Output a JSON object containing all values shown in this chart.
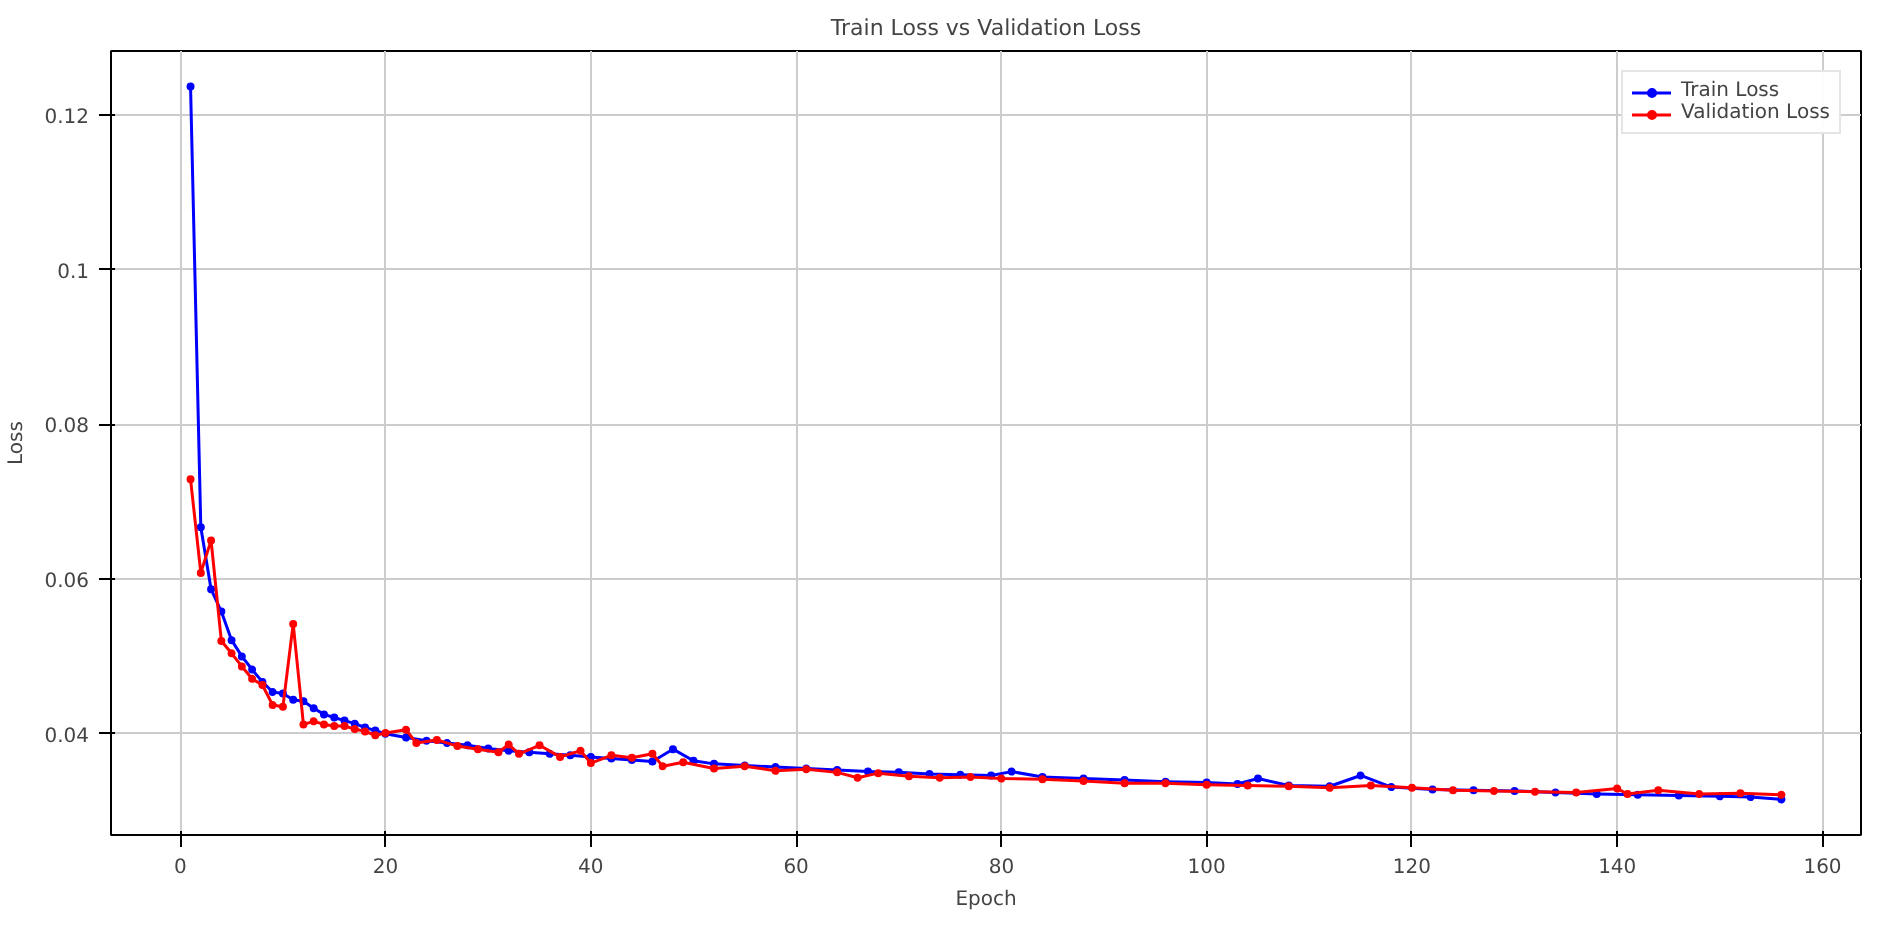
{
  "chart_data": {
    "type": "line",
    "title": "Train Loss vs Validation Loss",
    "xlabel": "Epoch",
    "ylabel": "Loss",
    "xlim": [
      -6.75,
      163.75
    ],
    "ylim": [
      0.0269,
      0.1283
    ],
    "xticks": [
      0,
      20,
      40,
      60,
      80,
      100,
      120,
      140,
      160
    ],
    "yticks": [
      0.04,
      0.06,
      0.08,
      0.1,
      0.12
    ],
    "grid": true,
    "legend": "top right",
    "marker": "circle",
    "line_style": "solid",
    "series": [
      {
        "name": "Train Loss",
        "color": "#0000ff",
        "x": [
          1,
          2,
          3,
          4,
          5,
          6,
          7,
          8,
          9,
          10,
          11,
          12,
          13,
          14,
          15,
          16,
          17,
          18,
          19,
          20,
          22,
          24,
          26,
          28,
          30,
          32,
          34,
          36,
          38,
          40,
          42,
          44,
          46,
          48,
          50,
          52,
          55,
          58,
          61,
          64,
          67,
          70,
          73,
          76,
          79,
          81,
          84,
          88,
          92,
          96,
          100,
          103,
          105,
          108,
          112,
          115,
          118,
          122,
          126,
          130,
          134,
          138,
          142,
          146,
          150,
          153,
          156
        ],
        "values": [
          0.1237,
          0.0667,
          0.0587,
          0.0558,
          0.0521,
          0.05,
          0.0483,
          0.0467,
          0.0454,
          0.0452,
          0.0444,
          0.0442,
          0.0433,
          0.0425,
          0.0421,
          0.0417,
          0.0413,
          0.0408,
          0.0404,
          0.04,
          0.0395,
          0.0391,
          0.0388,
          0.0385,
          0.0381,
          0.0378,
          0.0376,
          0.0374,
          0.0372,
          0.037,
          0.0368,
          0.0366,
          0.0364,
          0.038,
          0.0365,
          0.0361,
          0.0359,
          0.0357,
          0.0355,
          0.0353,
          0.0351,
          0.035,
          0.0348,
          0.0347,
          0.0346,
          0.0351,
          0.0344,
          0.0342,
          0.034,
          0.0338,
          0.0337,
          0.0335,
          0.0342,
          0.0333,
          0.0332,
          0.0346,
          0.0331,
          0.0328,
          0.0327,
          0.0326,
          0.0324,
          0.0322,
          0.0321,
          0.032,
          0.0319,
          0.0318,
          0.0315
        ]
      },
      {
        "name": "Validation Loss",
        "color": "#ff0000",
        "x": [
          1,
          2,
          3,
          4,
          5,
          6,
          7,
          8,
          9,
          10,
          11,
          12,
          13,
          14,
          15,
          16,
          17,
          18,
          19,
          20,
          22,
          23,
          25,
          27,
          29,
          31,
          32,
          33,
          35,
          37,
          39,
          40,
          42,
          44,
          46,
          47,
          49,
          52,
          55,
          58,
          61,
          64,
          66,
          68,
          71,
          74,
          77,
          80,
          84,
          88,
          92,
          96,
          100,
          104,
          108,
          112,
          116,
          120,
          124,
          128,
          132,
          136,
          140,
          141,
          144,
          148,
          152,
          156
        ],
        "values": [
          0.0729,
          0.0608,
          0.065,
          0.052,
          0.0504,
          0.0487,
          0.0471,
          0.0463,
          0.0437,
          0.0435,
          0.0542,
          0.0412,
          0.0416,
          0.0412,
          0.041,
          0.041,
          0.0406,
          0.0403,
          0.0398,
          0.0401,
          0.0405,
          0.0388,
          0.0392,
          0.0384,
          0.038,
          0.0376,
          0.0386,
          0.0374,
          0.0385,
          0.037,
          0.0378,
          0.0362,
          0.0372,
          0.0369,
          0.0374,
          0.0358,
          0.0363,
          0.0355,
          0.0358,
          0.0352,
          0.0354,
          0.035,
          0.0343,
          0.0349,
          0.0345,
          0.0343,
          0.0344,
          0.0342,
          0.0341,
          0.0339,
          0.0336,
          0.0336,
          0.0334,
          0.0333,
          0.0332,
          0.033,
          0.0333,
          0.033,
          0.0327,
          0.0326,
          0.0325,
          0.0324,
          0.0329,
          0.0322,
          0.0327,
          0.0322,
          0.0323,
          0.0321
        ]
      }
    ]
  }
}
